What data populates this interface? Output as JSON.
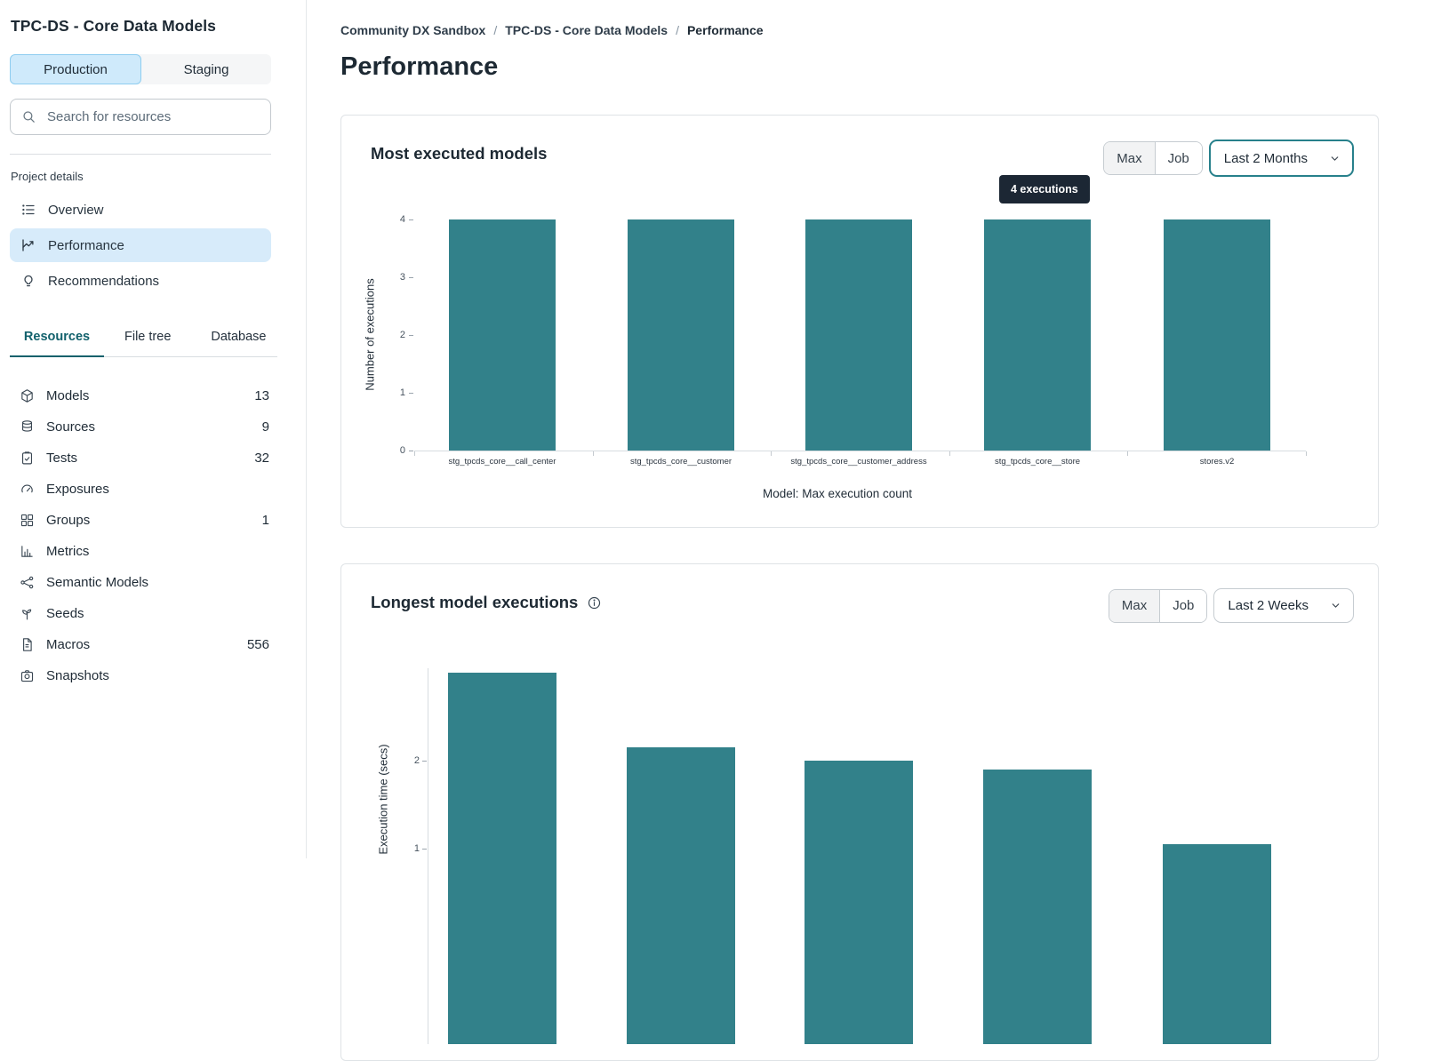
{
  "sidebar": {
    "title": "TPC-DS - Core Data Models",
    "env": [
      {
        "label": "Production",
        "active": true
      },
      {
        "label": "Staging",
        "active": false
      }
    ],
    "search_placeholder": "Search for resources",
    "project_details_label": "Project details",
    "nav": [
      {
        "label": "Overview"
      },
      {
        "label": "Performance"
      },
      {
        "label": "Recommendations"
      }
    ],
    "tabs": [
      {
        "label": "Resources"
      },
      {
        "label": "File tree"
      },
      {
        "label": "Database"
      }
    ],
    "resources": [
      {
        "label": "Models",
        "count": "13"
      },
      {
        "label": "Sources",
        "count": "9"
      },
      {
        "label": "Tests",
        "count": "32"
      },
      {
        "label": "Exposures",
        "count": ""
      },
      {
        "label": "Groups",
        "count": "1"
      },
      {
        "label": "Metrics",
        "count": ""
      },
      {
        "label": "Semantic Models",
        "count": ""
      },
      {
        "label": "Seeds",
        "count": ""
      },
      {
        "label": "Macros",
        "count": "556"
      },
      {
        "label": "Snapshots",
        "count": ""
      }
    ]
  },
  "breadcrumb": {
    "separator": "/",
    "items": [
      {
        "label": "Community DX Sandbox"
      },
      {
        "label": "TPC-DS - Core Data Models"
      },
      {
        "label": "Performance"
      }
    ]
  },
  "page_title": "Performance",
  "cards": [
    {
      "toggle_max": "Max",
      "toggle_job": "Job",
      "selected_toggle": "Max",
      "range": "Last 2 Months",
      "tooltip": "4 executions"
    },
    {
      "toggle_max": "Max",
      "toggle_job": "Job",
      "selected_toggle": "Max",
      "range": "Last 2 Weeks"
    }
  ],
  "chart_data": [
    {
      "type": "bar",
      "title": "Most executed models",
      "categories": [
        "stg_tpcds_core__call_center",
        "stg_tpcds_core__customer",
        "stg_tpcds_core__customer_address",
        "stg_tpcds_core__store",
        "stores.v2"
      ],
      "values": [
        4,
        4,
        4,
        4,
        4
      ],
      "xlabel": "Model: Max execution count",
      "ylabel": "Number of executions",
      "ylim": [
        0,
        4
      ],
      "yticks": [
        0,
        1,
        2,
        3,
        4
      ],
      "bar_color": "#32818a",
      "legend": "none",
      "grid": false
    },
    {
      "type": "bar",
      "title": "Longest model executions",
      "values": [
        3.0,
        2.15,
        2.0,
        1.9,
        1.05
      ],
      "ylabel": "Execution time (secs)",
      "yticks": [
        1,
        2
      ],
      "bar_color": "#32818a",
      "legend": "none",
      "grid": false
    }
  ]
}
